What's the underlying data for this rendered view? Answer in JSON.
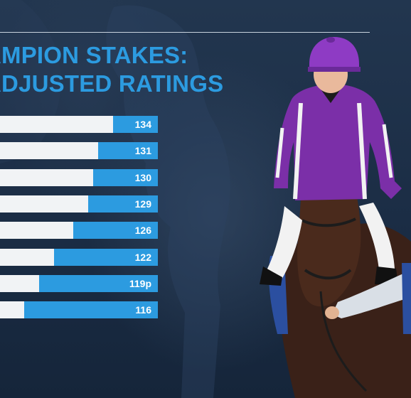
{
  "page": {
    "title_line1": "AMPION STAKES:",
    "title_line2": "ADJUSTED RATINGS"
  },
  "colors": {
    "background": "#1b2d45",
    "accent": "#2c9be0",
    "bar_base": "#f1f3f5",
    "silk_purple": "#7b2fa8",
    "silk_white": "#f2f2f2"
  },
  "chart_data": {
    "type": "bar",
    "orientation": "horizontal",
    "categories": [
      "",
      "",
      "",
      "",
      "",
      "",
      "",
      ""
    ],
    "values": [
      134,
      131,
      130,
      129,
      126,
      122,
      119,
      116
    ],
    "value_labels": [
      "134",
      "131",
      "130",
      "129",
      "126",
      "122",
      "119p",
      "116"
    ],
    "title": "AMPION STAKES: ADJUSTED RATINGS",
    "xlabel": "",
    "ylabel": "",
    "legend": "none",
    "grid": false
  },
  "photo": {
    "icon": "jockey-on-horse-icon"
  }
}
